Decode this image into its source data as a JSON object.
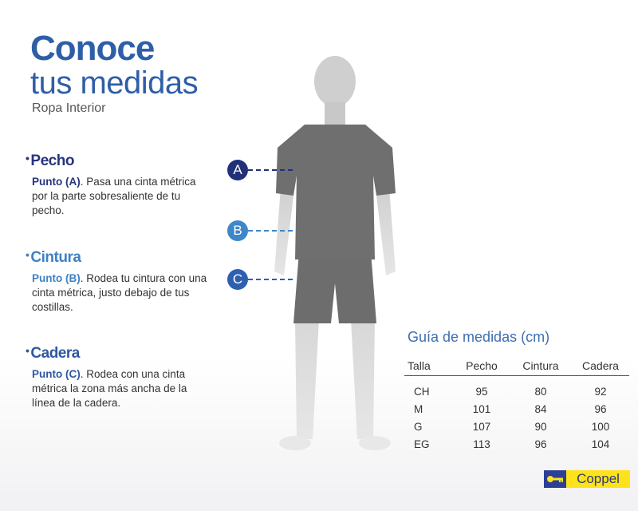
{
  "header": {
    "title_bold": "Conoce",
    "title_light": "tus medidas",
    "subtitle": "Ropa Interior"
  },
  "sections": [
    {
      "title": "Pecho",
      "point": "Punto (A)",
      "text": ". Pasa una cinta métrica por la parte sobresaliente de tu pecho.",
      "color": "#27347e"
    },
    {
      "title": "Cintura",
      "point": "Punto (B)",
      "text": ".  Rodea tu cintura con una cinta métrica, justo debajo de tus costillas.",
      "color": "#3e82c4"
    },
    {
      "title": "Cadera",
      "point": "Punto (C)",
      "text": ". Rodea con una cinta métrica la zona más ancha de la línea de la cadera.",
      "color": "#2f58a0"
    }
  ],
  "markers": [
    {
      "label": "A",
      "color": "#22307a"
    },
    {
      "label": "B",
      "color": "#3f86c8"
    },
    {
      "label": "C",
      "color": "#2e5fb0"
    }
  ],
  "guide": {
    "title": "Guía de medidas (cm)",
    "headers": [
      "Talla",
      "Pecho",
      "Cintura",
      "Cadera"
    ],
    "rows": [
      [
        "CH",
        "95",
        "80",
        "92"
      ],
      [
        "M",
        "101",
        "84",
        "96"
      ],
      [
        "G",
        "107",
        "90",
        "100"
      ],
      [
        "EG",
        "113",
        "96",
        "104"
      ]
    ]
  },
  "brand": {
    "name": "Coppel",
    "icon": "key-icon",
    "colors": {
      "blue": "#2b3f95",
      "yellow": "#ffe21a"
    }
  }
}
